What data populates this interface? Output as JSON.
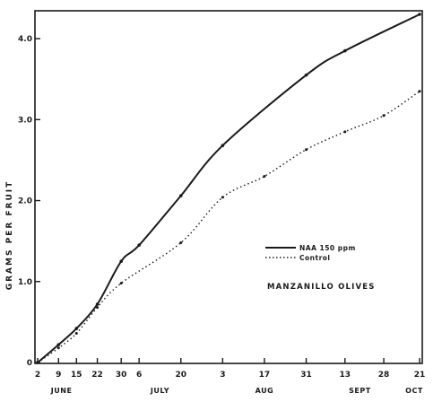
{
  "chart_data": {
    "type": "line",
    "title": "",
    "ylabel": "GRAMS PER FRUIT",
    "xlabel": "",
    "ylim": [
      0,
      43
    ],
    "xlim": [
      2,
      124
    ],
    "grid": false,
    "legend_position": "center-right",
    "annotation": "MANZANILLO  OLIVES",
    "y_ticks": [
      {
        "value": 0,
        "label": "0"
      },
      {
        "value": 10,
        "label": "1.0"
      },
      {
        "value": 20,
        "label": "2.0"
      },
      {
        "value": 30,
        "label": "3.0"
      },
      {
        "value": 40,
        "label": "4.0"
      }
    ],
    "x_ticks": [
      {
        "value": 2,
        "label": "2"
      },
      {
        "value": 9,
        "label": "9"
      },
      {
        "value": 15,
        "label": "15"
      },
      {
        "value": 22,
        "label": "22"
      },
      {
        "value": 30,
        "label": "30"
      },
      {
        "value": 36,
        "label": "6"
      },
      {
        "value": 50,
        "label": "20"
      },
      {
        "value": 64,
        "label": "3"
      },
      {
        "value": 78,
        "label": "17"
      },
      {
        "value": 92,
        "label": "31"
      },
      {
        "value": 105,
        "label": "13"
      },
      {
        "value": 118,
        "label": "28"
      },
      {
        "value": 130,
        "label": "21"
      }
    ],
    "months": [
      {
        "x": 10,
        "label": "JUNE"
      },
      {
        "x": 43,
        "label": "JULY"
      },
      {
        "x": 78,
        "label": "AUG"
      },
      {
        "x": 110,
        "label": "SEPT"
      },
      {
        "x": 130,
        "label": "OCT"
      }
    ],
    "series": [
      {
        "name": "NAA 150 ppm",
        "style": "solid",
        "points": [
          [
            2,
            0
          ],
          [
            9,
            2.2
          ],
          [
            15,
            4.2
          ],
          [
            22,
            7.2
          ],
          [
            30,
            12.5
          ],
          [
            36,
            14.5
          ],
          [
            50,
            20.6
          ],
          [
            64,
            26.8
          ],
          [
            92,
            35.5
          ],
          [
            105,
            38.5
          ],
          [
            130,
            43
          ]
        ]
      },
      {
        "name": "Control",
        "style": "dotted",
        "points": [
          [
            2,
            0
          ],
          [
            9,
            1.8
          ],
          [
            15,
            3.6
          ],
          [
            22,
            6.8
          ],
          [
            30,
            9.8
          ],
          [
            50,
            14.8
          ],
          [
            64,
            20.4
          ],
          [
            78,
            23
          ],
          [
            92,
            26.3
          ],
          [
            105,
            28.5
          ],
          [
            118,
            30.5
          ],
          [
            130,
            33.5
          ]
        ]
      }
    ]
  }
}
